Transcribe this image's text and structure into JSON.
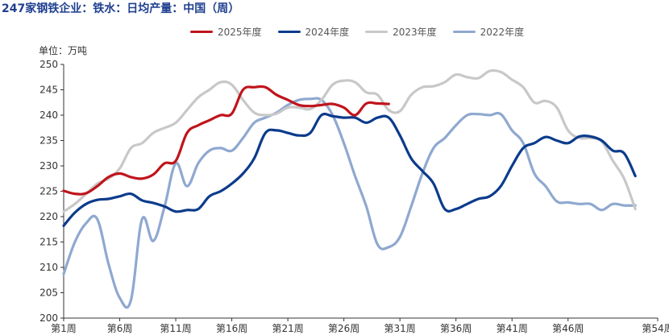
{
  "title": "247家钢铁企业：铁水：日均产量：中国（周）",
  "unit": "单位：万吨",
  "chart_data": {
    "type": "line",
    "title": "247家钢铁企业：铁水：日均产量：中国（周）",
    "ylabel": "单位：万吨",
    "xlabel": "",
    "x_ticks": [
      "第1周",
      "第6周",
      "第11周",
      "第16周",
      "第21周",
      "第26周",
      "第31周",
      "第36周",
      "第41周",
      "第46周",
      "第54周"
    ],
    "x_tick_weeks": [
      1,
      6,
      11,
      16,
      21,
      26,
      31,
      36,
      41,
      46,
      54
    ],
    "xlim": [
      1,
      54
    ],
    "ylim": [
      200,
      250
    ],
    "y_ticks": [
      200,
      205,
      210,
      215,
      220,
      225,
      230,
      235,
      240,
      245,
      250
    ],
    "legend_position": "top-center",
    "grid": false,
    "series": [
      {
        "name": "2025年度",
        "color": "#c0141c",
        "x": [
          1,
          2,
          3,
          4,
          5,
          6,
          7,
          8,
          9,
          10,
          11,
          12,
          13,
          14,
          15,
          16,
          17,
          18,
          19,
          20,
          21,
          22,
          23,
          24,
          25,
          26,
          27,
          28,
          29,
          30
        ],
        "values": [
          225.1,
          224.5,
          224.6,
          226.0,
          227.8,
          228.5,
          227.8,
          227.5,
          228.3,
          230.5,
          231.0,
          236.5,
          238.0,
          239.0,
          240.0,
          240.3,
          245.0,
          245.5,
          245.5,
          244.0,
          243.0,
          242.0,
          241.8,
          242.0,
          242.2,
          241.5,
          240.0,
          242.3,
          242.3,
          242.2
        ]
      },
      {
        "name": "2024年度",
        "color": "#0b3b8c",
        "x": [
          1,
          2,
          3,
          4,
          5,
          6,
          7,
          8,
          9,
          10,
          11,
          12,
          13,
          14,
          15,
          16,
          17,
          18,
          19,
          20,
          21,
          22,
          23,
          24,
          25,
          26,
          27,
          28,
          29,
          30,
          31,
          32,
          33,
          34,
          35,
          36,
          37,
          38,
          39,
          40,
          41,
          42,
          43,
          44,
          45,
          46,
          47,
          48,
          49,
          50,
          51,
          52
        ],
        "values": [
          218.2,
          220.8,
          222.5,
          223.3,
          223.5,
          224.0,
          224.5,
          223.2,
          222.7,
          222.0,
          221.0,
          221.3,
          221.5,
          224.0,
          225.0,
          226.5,
          228.5,
          231.5,
          236.5,
          237.0,
          236.5,
          236.0,
          236.5,
          240.0,
          239.8,
          239.5,
          239.5,
          238.5,
          239.5,
          239.5,
          236.0,
          231.5,
          229.0,
          226.5,
          221.5,
          221.5,
          222.5,
          223.5,
          224.0,
          226.0,
          230.0,
          233.5,
          234.5,
          235.7,
          235.0,
          234.5,
          235.8,
          235.8,
          235.0,
          233.0,
          232.5,
          228.0
        ]
      },
      {
        "name": "2023年度",
        "color": "#c8c8c8",
        "x": [
          1,
          2,
          3,
          4,
          5,
          6,
          7,
          8,
          9,
          10,
          11,
          12,
          13,
          14,
          15,
          16,
          17,
          18,
          19,
          20,
          21,
          22,
          23,
          24,
          25,
          26,
          27,
          28,
          29,
          30,
          31,
          32,
          33,
          34,
          35,
          36,
          37,
          38,
          39,
          40,
          41,
          42,
          43,
          44,
          45,
          46,
          47,
          48,
          49,
          50,
          51,
          52
        ],
        "values": [
          221.0,
          222.5,
          224.5,
          226.5,
          227.5,
          229.5,
          233.5,
          234.5,
          236.5,
          237.5,
          238.5,
          241.0,
          243.5,
          245.0,
          246.5,
          246.0,
          243.0,
          240.5,
          240.0,
          240.3,
          241.5,
          241.5,
          241.2,
          243.0,
          246.0,
          246.8,
          246.5,
          244.5,
          244.0,
          241.0,
          240.8,
          244.0,
          245.5,
          245.7,
          246.5,
          248.0,
          247.5,
          247.3,
          248.7,
          248.5,
          247.0,
          245.5,
          242.5,
          242.8,
          241.5,
          237.0,
          235.5,
          235.5,
          234.8,
          231.0,
          227.5,
          221.5
        ]
      },
      {
        "name": "2022年度",
        "color": "#8fa8d0",
        "x": [
          1,
          2,
          3,
          4,
          5,
          6,
          7,
          8,
          9,
          10,
          11,
          12,
          13,
          14,
          15,
          16,
          17,
          18,
          19,
          20,
          21,
          22,
          23,
          24,
          25,
          26,
          27,
          28,
          29,
          30,
          31,
          32,
          33,
          34,
          35,
          36,
          37,
          38,
          39,
          40,
          41,
          42,
          43,
          44,
          45,
          46,
          47,
          48,
          49,
          50,
          51,
          52
        ],
        "values": [
          208.7,
          215.0,
          218.7,
          219.5,
          210.7,
          204.0,
          203.5,
          219.5,
          215.2,
          222.0,
          230.5,
          226.0,
          230.5,
          233.0,
          233.5,
          233.0,
          235.5,
          238.5,
          239.5,
          240.5,
          242.0,
          243.0,
          243.2,
          243.0,
          240.0,
          234.5,
          228.0,
          222.0,
          214.5,
          214.0,
          216.0,
          222.0,
          228.5,
          233.5,
          235.5,
          238.0,
          240.0,
          240.2,
          240.0,
          240.2,
          237.0,
          234.5,
          228.5,
          226.0,
          223.0,
          222.8,
          222.5,
          222.5,
          221.3,
          222.5,
          222.2,
          222.2
        ]
      }
    ]
  }
}
